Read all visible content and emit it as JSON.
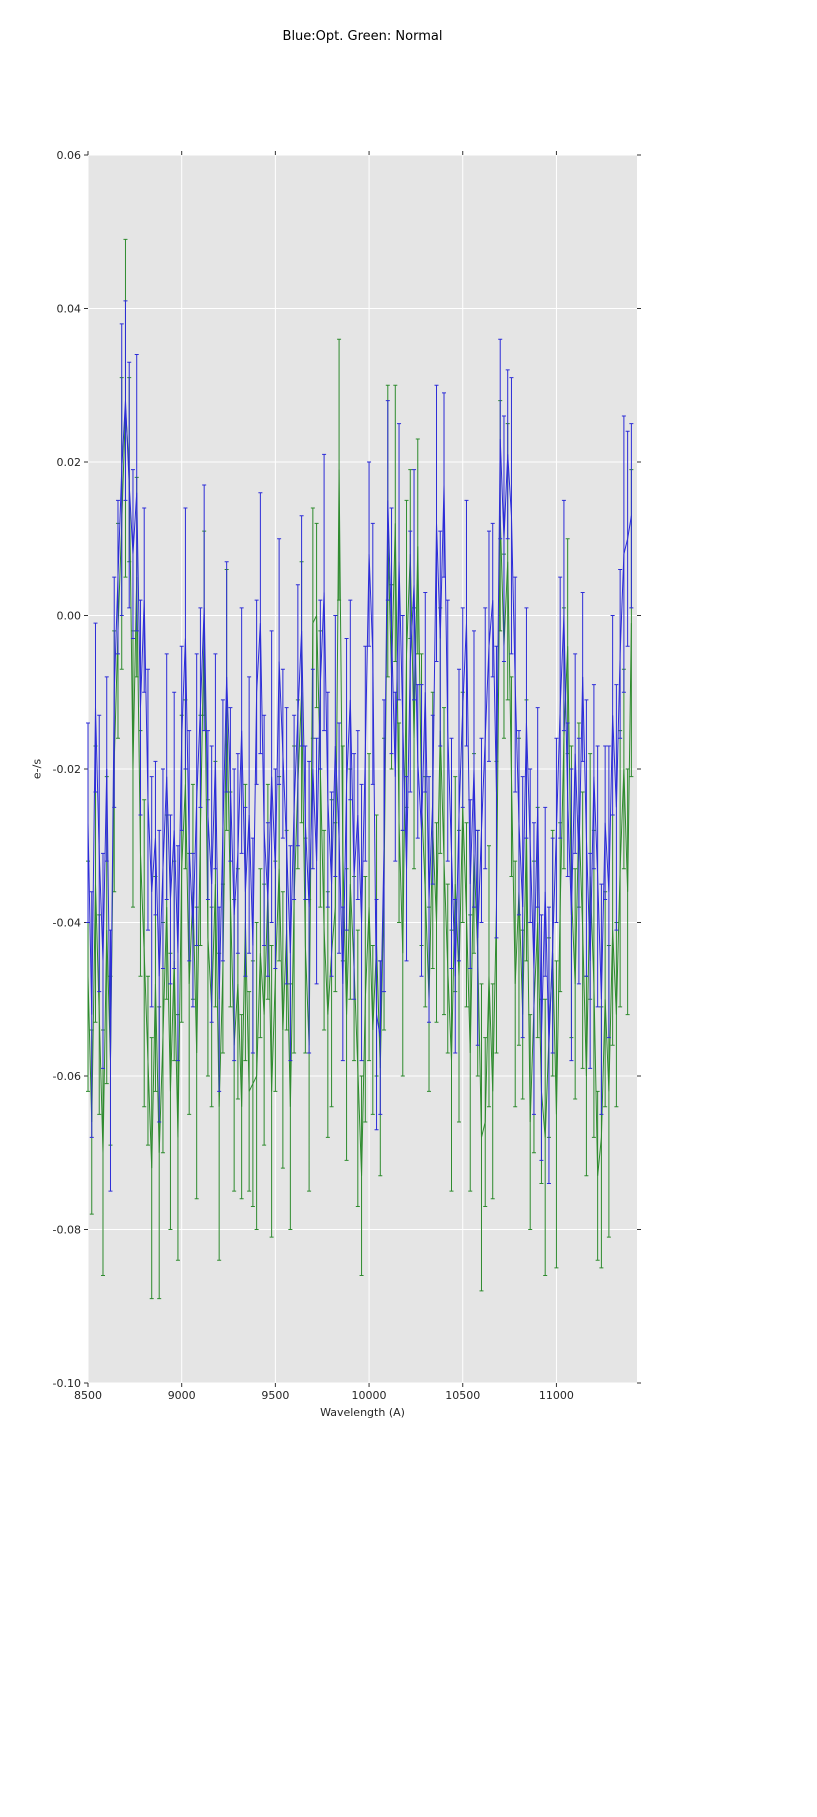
{
  "chart_data": {
    "type": "line",
    "title": "Blue:Opt. Green: Normal",
    "xlabel": "Wavelength (A)",
    "ylabel": "e-/s",
    "xlim": [
      8500,
      11430
    ],
    "ylim": [
      -0.1,
      0.06
    ],
    "xticks": [
      8500,
      9000,
      9500,
      10000,
      10500,
      11000
    ],
    "xtick_labels": [
      "8500",
      "9000",
      "9500",
      "10000",
      "10500",
      "11000"
    ],
    "yticks": [
      0.06,
      0.04,
      0.02,
      0.0,
      -0.02,
      -0.04,
      -0.06,
      -0.08,
      -0.1
    ],
    "ytick_labels": [
      "0.06",
      "0.04",
      "0.02",
      "0.00",
      "-0.02",
      "-0.04",
      "-0.06",
      "-0.08",
      "-0.10"
    ],
    "grid": true,
    "legend": "none",
    "plot_bg": "#e5e5e5",
    "grid_color": "#ffffff",
    "tick_color": "#333333",
    "label_color": "#262626",
    "x_start": 8500,
    "x_step": 20,
    "series": [
      {
        "name": "Normal",
        "color": "#2e8b2e",
        "values": [
          -0.047,
          -0.066,
          -0.035,
          -0.052,
          -0.07,
          -0.041,
          -0.058,
          -0.019,
          -0.002,
          0.012,
          0.027,
          0.019,
          -0.02,
          0.005,
          -0.031,
          -0.044,
          -0.058,
          -0.072,
          -0.048,
          -0.07,
          -0.055,
          -0.038,
          -0.062,
          -0.045,
          -0.068,
          -0.033,
          -0.022,
          -0.048,
          -0.036,
          -0.057,
          -0.028,
          -0.001,
          -0.042,
          -0.051,
          -0.035,
          -0.064,
          -0.046,
          -0.011,
          -0.037,
          -0.056,
          -0.048,
          -0.064,
          -0.04,
          -0.062,
          -0.061,
          -0.06,
          -0.044,
          -0.052,
          -0.036,
          -0.062,
          -0.047,
          -0.033,
          -0.054,
          -0.041,
          -0.064,
          -0.037,
          -0.022,
          -0.01,
          -0.043,
          -0.056,
          -0.001,
          0.0,
          -0.02,
          -0.041,
          -0.052,
          -0.044,
          -0.038,
          0.019,
          -0.031,
          -0.052,
          -0.035,
          -0.046,
          -0.059,
          -0.073,
          -0.05,
          -0.038,
          -0.054,
          -0.043,
          -0.059,
          -0.035,
          0.011,
          -0.008,
          0.012,
          -0.027,
          -0.044,
          -0.005,
          0.008,
          -0.016,
          0.009,
          -0.024,
          -0.036,
          -0.05,
          -0.028,
          -0.04,
          -0.015,
          -0.032,
          -0.046,
          -0.058,
          -0.035,
          -0.047,
          -0.025,
          -0.039,
          -0.057,
          -0.031,
          -0.044,
          -0.068,
          -0.066,
          -0.047,
          -0.062,
          -0.038,
          0.013,
          -0.004,
          0.007,
          -0.021,
          -0.048,
          -0.036,
          -0.052,
          -0.028,
          -0.066,
          -0.051,
          -0.04,
          -0.062,
          -0.068,
          -0.055,
          -0.044,
          -0.065,
          -0.038,
          -0.016,
          -0.004,
          -0.036,
          -0.048,
          -0.026,
          -0.041,
          -0.06,
          -0.034,
          -0.048,
          -0.073,
          -0.068,
          -0.05,
          -0.062,
          -0.041,
          -0.052,
          -0.033,
          -0.02,
          -0.036,
          -0.001
        ],
        "errors": [
          0.015,
          0.012,
          0.018,
          0.013,
          0.016,
          0.02,
          0.011,
          0.017,
          0.014,
          0.019,
          0.022,
          0.012,
          0.018,
          0.013,
          0.016,
          0.02,
          0.011,
          0.017,
          0.014,
          0.019,
          0.015,
          0.012,
          0.018,
          0.013,
          0.016,
          0.02,
          0.011,
          0.017,
          0.014,
          0.019,
          0.015,
          0.012,
          0.018,
          0.013,
          0.016,
          0.02,
          0.011,
          0.017,
          0.014,
          0.019,
          0.015,
          0.012,
          0.018,
          0.013,
          0.016,
          0.02,
          0.011,
          0.017,
          0.014,
          0.019,
          0.015,
          0.012,
          0.018,
          0.013,
          0.016,
          0.02,
          0.011,
          0.017,
          0.014,
          0.019,
          0.015,
          0.012,
          0.018,
          0.013,
          0.016,
          0.02,
          0.011,
          0.017,
          0.014,
          0.019,
          0.015,
          0.012,
          0.018,
          0.013,
          0.016,
          0.02,
          0.011,
          0.017,
          0.014,
          0.019,
          0.019,
          0.012,
          0.018,
          0.013,
          0.016,
          0.02,
          0.011,
          0.017,
          0.014,
          0.019,
          0.015,
          0.012,
          0.018,
          0.013,
          0.016,
          0.02,
          0.011,
          0.017,
          0.014,
          0.019,
          0.015,
          0.012,
          0.018,
          0.013,
          0.016,
          0.02,
          0.011,
          0.017,
          0.014,
          0.019,
          0.015,
          0.012,
          0.018,
          0.013,
          0.016,
          0.02,
          0.011,
          0.017,
          0.014,
          0.019,
          0.015,
          0.012,
          0.018,
          0.013,
          0.016,
          0.02,
          0.011,
          0.017,
          0.014,
          0.019,
          0.015,
          0.012,
          0.018,
          0.013,
          0.016,
          0.02,
          0.011,
          0.017,
          0.014,
          0.019,
          0.015,
          0.012,
          0.018,
          0.013,
          0.016,
          0.02
        ]
      },
      {
        "name": "Opt",
        "color": "#2c2cd8",
        "values": [
          -0.027,
          -0.052,
          -0.012,
          -0.031,
          -0.045,
          -0.02,
          -0.058,
          -0.01,
          0.005,
          0.019,
          0.028,
          0.017,
          0.008,
          0.016,
          -0.012,
          0.002,
          -0.024,
          -0.036,
          -0.029,
          -0.047,
          -0.033,
          -0.021,
          -0.037,
          -0.028,
          -0.044,
          -0.016,
          -0.003,
          -0.03,
          -0.041,
          -0.024,
          -0.012,
          0.001,
          -0.026,
          -0.035,
          -0.019,
          -0.05,
          -0.028,
          -0.008,
          -0.022,
          -0.039,
          -0.031,
          -0.015,
          -0.036,
          -0.026,
          -0.043,
          -0.01,
          -0.001,
          -0.028,
          -0.037,
          -0.021,
          -0.033,
          -0.006,
          -0.018,
          -0.03,
          -0.044,
          -0.025,
          -0.013,
          -0.002,
          -0.027,
          -0.038,
          -0.02,
          -0.032,
          -0.009,
          0.003,
          -0.024,
          -0.035,
          -0.017,
          -0.029,
          -0.048,
          -0.022,
          -0.011,
          -0.034,
          -0.026,
          -0.04,
          -0.018,
          0.008,
          -0.005,
          -0.052,
          -0.055,
          -0.03,
          0.015,
          -0.002,
          -0.021,
          0.007,
          -0.014,
          -0.033,
          -0.006,
          0.004,
          -0.019,
          -0.028,
          -0.01,
          -0.037,
          -0.024,
          0.012,
          -0.003,
          0.017,
          -0.015,
          -0.031,
          -0.047,
          -0.026,
          -0.012,
          -0.001,
          -0.035,
          -0.02,
          -0.042,
          -0.028,
          -0.016,
          -0.004,
          0.002,
          -0.023,
          0.023,
          0.01,
          0.021,
          0.013,
          -0.009,
          -0.027,
          -0.038,
          -0.014,
          -0.03,
          -0.046,
          -0.025,
          -0.055,
          -0.036,
          -0.056,
          -0.043,
          -0.028,
          -0.012,
          0.0,
          -0.024,
          -0.039,
          -0.018,
          -0.032,
          -0.008,
          -0.029,
          -0.045,
          -0.021,
          -0.034,
          -0.05,
          -0.027,
          -0.036,
          -0.013,
          -0.025,
          -0.005,
          0.008,
          0.01,
          0.013
        ],
        "errors": [
          0.013,
          0.016,
          0.011,
          0.018,
          0.014,
          0.012,
          0.017,
          0.015,
          0.01,
          0.019,
          0.013,
          0.016,
          0.011,
          0.018,
          0.014,
          0.012,
          0.017,
          0.015,
          0.01,
          0.019,
          0.013,
          0.016,
          0.011,
          0.018,
          0.014,
          0.012,
          0.017,
          0.015,
          0.01,
          0.019,
          0.013,
          0.016,
          0.011,
          0.018,
          0.014,
          0.012,
          0.017,
          0.015,
          0.01,
          0.019,
          0.013,
          0.016,
          0.011,
          0.018,
          0.014,
          0.012,
          0.017,
          0.015,
          0.01,
          0.019,
          0.013,
          0.016,
          0.011,
          0.018,
          0.014,
          0.012,
          0.017,
          0.015,
          0.01,
          0.019,
          0.013,
          0.016,
          0.011,
          0.018,
          0.014,
          0.012,
          0.017,
          0.015,
          0.01,
          0.019,
          0.013,
          0.016,
          0.011,
          0.018,
          0.014,
          0.012,
          0.017,
          0.015,
          0.01,
          0.019,
          0.013,
          0.016,
          0.011,
          0.018,
          0.014,
          0.012,
          0.017,
          0.015,
          0.01,
          0.019,
          0.013,
          0.016,
          0.011,
          0.018,
          0.014,
          0.012,
          0.017,
          0.015,
          0.01,
          0.019,
          0.013,
          0.016,
          0.011,
          0.018,
          0.014,
          0.012,
          0.017,
          0.015,
          0.01,
          0.019,
          0.013,
          0.016,
          0.011,
          0.018,
          0.014,
          0.012,
          0.017,
          0.015,
          0.01,
          0.019,
          0.013,
          0.016,
          0.011,
          0.018,
          0.014,
          0.012,
          0.017,
          0.015,
          0.01,
          0.019,
          0.013,
          0.016,
          0.011,
          0.018,
          0.014,
          0.012,
          0.017,
          0.015,
          0.01,
          0.019,
          0.013,
          0.016,
          0.011,
          0.018,
          0.014,
          0.012
        ]
      }
    ]
  }
}
